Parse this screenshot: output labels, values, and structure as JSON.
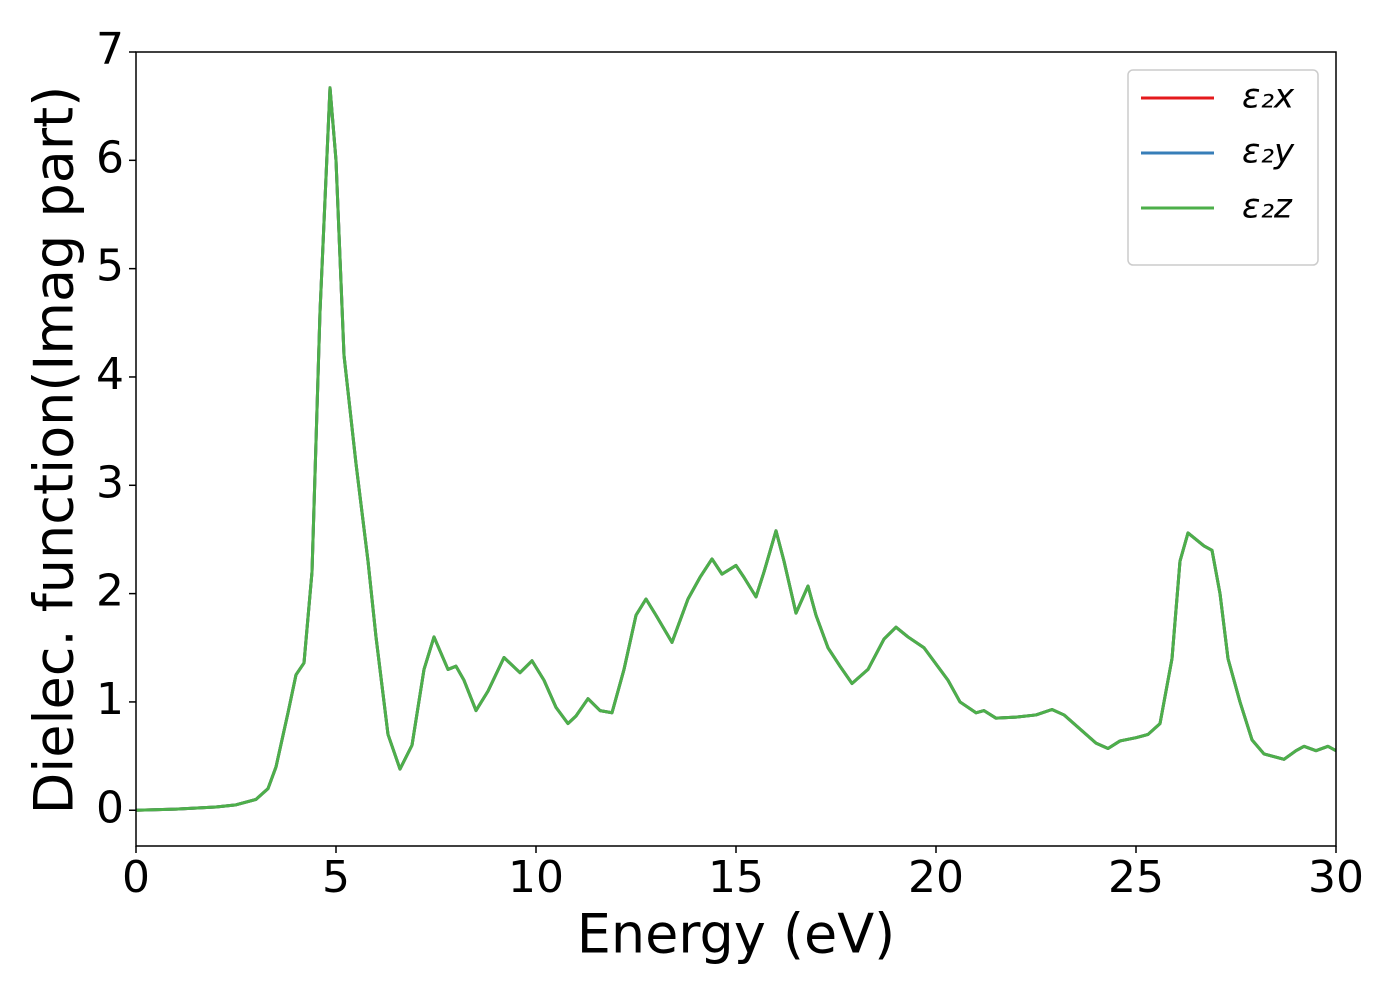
{
  "chart_data": {
    "type": "line",
    "xlabel": "Energy (eV)",
    "ylabel": "Dielec. function(Imag part)",
    "x": [
      0,
      1,
      2,
      2.5,
      3,
      3.3,
      3.5,
      3.8,
      4.0,
      4.2,
      4.4,
      4.6,
      4.85,
      5.0,
      5.2,
      5.5,
      5.8,
      6.0,
      6.3,
      6.6,
      6.9,
      7.2,
      7.45,
      7.8,
      8.0,
      8.2,
      8.5,
      8.8,
      9.2,
      9.6,
      9.9,
      10.2,
      10.5,
      10.8,
      11.0,
      11.3,
      11.6,
      11.9,
      12.2,
      12.5,
      12.75,
      13.0,
      13.4,
      13.8,
      14.1,
      14.4,
      14.65,
      15.0,
      15.2,
      15.5,
      15.7,
      16.0,
      16.2,
      16.5,
      16.8,
      17.0,
      17.3,
      17.6,
      17.9,
      18.3,
      18.7,
      19.0,
      19.3,
      19.7,
      20.0,
      20.3,
      20.6,
      21.0,
      21.2,
      21.5,
      22.0,
      22.5,
      22.9,
      23.2,
      23.6,
      24.0,
      24.3,
      24.6,
      25.0,
      25.3,
      25.6,
      25.9,
      26.1,
      26.3,
      26.5,
      26.7,
      26.9,
      27.1,
      27.3,
      27.6,
      27.9,
      28.2,
      28.7,
      29.0,
      29.2,
      29.5,
      29.8,
      30.0
    ],
    "series": [
      {
        "name": "ε₂x",
        "color": "#e41a1c",
        "values": [
          0.0,
          0.01,
          0.03,
          0.05,
          0.1,
          0.2,
          0.4,
          0.9,
          1.25,
          1.36,
          2.2,
          4.6,
          6.67,
          6.0,
          4.2,
          3.2,
          2.3,
          1.6,
          0.7,
          0.38,
          0.6,
          1.3,
          1.6,
          1.3,
          1.33,
          1.2,
          0.92,
          1.1,
          1.41,
          1.27,
          1.38,
          1.2,
          0.95,
          0.8,
          0.87,
          1.03,
          0.92,
          0.9,
          1.3,
          1.8,
          1.95,
          1.8,
          1.55,
          1.95,
          2.15,
          2.32,
          2.18,
          2.26,
          2.15,
          1.97,
          2.2,
          2.58,
          2.3,
          1.82,
          2.07,
          1.8,
          1.5,
          1.33,
          1.17,
          1.3,
          1.58,
          1.69,
          1.6,
          1.5,
          1.35,
          1.2,
          1.0,
          0.9,
          0.92,
          0.85,
          0.86,
          0.88,
          0.93,
          0.88,
          0.75,
          0.62,
          0.57,
          0.64,
          0.67,
          0.7,
          0.8,
          1.4,
          2.3,
          2.56,
          2.5,
          2.44,
          2.4,
          2.0,
          1.4,
          1.0,
          0.65,
          0.52,
          0.47,
          0.55,
          0.59,
          0.55,
          0.59,
          0.55
        ]
      },
      {
        "name": "ε₂y",
        "color": "#377eb8",
        "values": [
          0.0,
          0.01,
          0.03,
          0.05,
          0.1,
          0.2,
          0.4,
          0.9,
          1.25,
          1.36,
          2.2,
          4.6,
          6.67,
          6.0,
          4.2,
          3.2,
          2.3,
          1.6,
          0.7,
          0.38,
          0.6,
          1.3,
          1.6,
          1.3,
          1.33,
          1.2,
          0.92,
          1.1,
          1.41,
          1.27,
          1.38,
          1.2,
          0.95,
          0.8,
          0.87,
          1.03,
          0.92,
          0.9,
          1.3,
          1.8,
          1.95,
          1.8,
          1.55,
          1.95,
          2.15,
          2.32,
          2.18,
          2.26,
          2.15,
          1.97,
          2.2,
          2.58,
          2.3,
          1.82,
          2.07,
          1.8,
          1.5,
          1.33,
          1.17,
          1.3,
          1.58,
          1.69,
          1.6,
          1.5,
          1.35,
          1.2,
          1.0,
          0.9,
          0.92,
          0.85,
          0.86,
          0.88,
          0.93,
          0.88,
          0.75,
          0.62,
          0.57,
          0.64,
          0.67,
          0.7,
          0.8,
          1.4,
          2.3,
          2.56,
          2.5,
          2.44,
          2.4,
          2.0,
          1.4,
          1.0,
          0.65,
          0.52,
          0.47,
          0.55,
          0.59,
          0.55,
          0.59,
          0.55
        ]
      },
      {
        "name": "ε₂z",
        "color": "#4daf4a",
        "values": [
          0.0,
          0.01,
          0.03,
          0.05,
          0.1,
          0.2,
          0.4,
          0.9,
          1.25,
          1.36,
          2.2,
          4.6,
          6.67,
          6.0,
          4.2,
          3.2,
          2.3,
          1.6,
          0.7,
          0.38,
          0.6,
          1.3,
          1.6,
          1.3,
          1.33,
          1.2,
          0.92,
          1.1,
          1.41,
          1.27,
          1.38,
          1.2,
          0.95,
          0.8,
          0.87,
          1.03,
          0.92,
          0.9,
          1.3,
          1.8,
          1.95,
          1.8,
          1.55,
          1.95,
          2.15,
          2.32,
          2.18,
          2.26,
          2.15,
          1.97,
          2.2,
          2.58,
          2.3,
          1.82,
          2.07,
          1.8,
          1.5,
          1.33,
          1.17,
          1.3,
          1.58,
          1.69,
          1.6,
          1.5,
          1.35,
          1.2,
          1.0,
          0.9,
          0.92,
          0.85,
          0.86,
          0.88,
          0.93,
          0.88,
          0.75,
          0.62,
          0.57,
          0.64,
          0.67,
          0.7,
          0.8,
          1.4,
          2.3,
          2.56,
          2.5,
          2.44,
          2.4,
          2.0,
          1.4,
          1.0,
          0.65,
          0.52,
          0.47,
          0.55,
          0.59,
          0.55,
          0.59,
          0.55
        ]
      }
    ],
    "xlim": [
      0,
      30
    ],
    "xticks": [
      0,
      5,
      10,
      15,
      20,
      25,
      30
    ],
    "ylim": [
      -0.33,
      7
    ],
    "yticks": [
      0,
      1,
      2,
      3,
      4,
      5,
      6,
      7
    ],
    "grid": false,
    "legend": "upper right"
  }
}
